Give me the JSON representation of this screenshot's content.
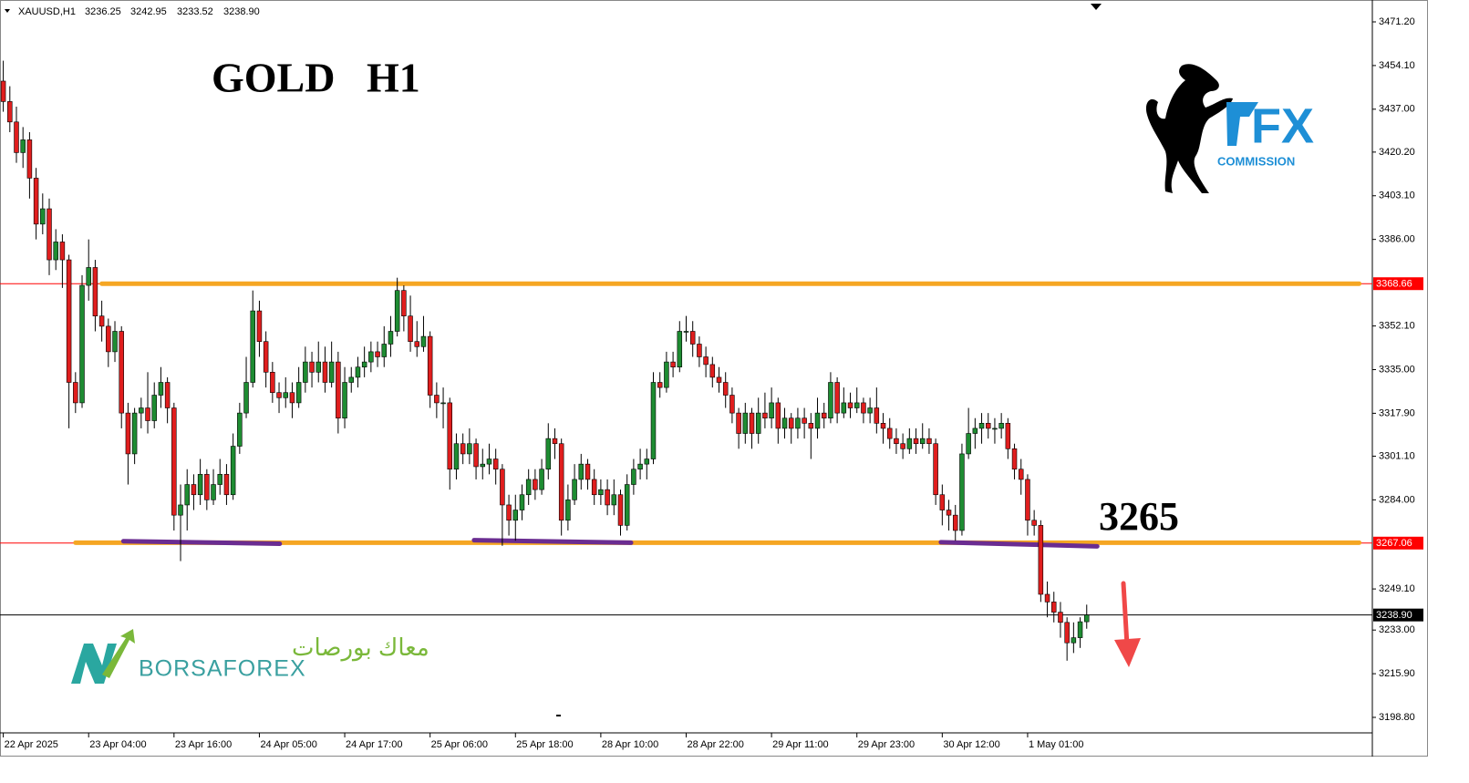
{
  "chart_data": {
    "type": "candlestick",
    "symbol": "XAUUSD,H1",
    "header_labels": [
      "3236.25",
      "3242.95",
      "3233.52",
      "3238.90"
    ],
    "title": "GOLD   H1",
    "annotation": "3265",
    "up_color": "#1e8c32",
    "down_color": "#e01e1e",
    "xlim": [
      -0.5,
      208.5
    ],
    "ylim": [
      3192.73,
      3479.77
    ],
    "xticks": [
      {
        "value": 0,
        "label": "22 Apr 2025"
      },
      {
        "value": 13,
        "label": "23 Apr 04:00"
      },
      {
        "value": 26,
        "label": "23 Apr 16:00"
      },
      {
        "value": 39,
        "label": "24 Apr 05:00"
      },
      {
        "value": 52,
        "label": "24 Apr 17:00"
      },
      {
        "value": 65,
        "label": "25 Apr 06:00"
      },
      {
        "value": 78,
        "label": "25 Apr 18:00"
      },
      {
        "value": 91,
        "label": "28 Apr 10:00"
      },
      {
        "value": 104,
        "label": "28 Apr 22:00"
      },
      {
        "value": 117,
        "label": "29 Apr 11:00"
      },
      {
        "value": 130,
        "label": "29 Apr 23:00"
      },
      {
        "value": 143,
        "label": "30 Apr 12:00"
      },
      {
        "value": 156,
        "label": "1 May 01:00"
      }
    ],
    "yticks": [
      {
        "value": 3471.2,
        "label": "3471.20"
      },
      {
        "value": 3454.1,
        "label": "3454.10"
      },
      {
        "value": 3437,
        "label": "3437.00"
      },
      {
        "value": 3420.2,
        "label": "3420.20"
      },
      {
        "value": 3403.1,
        "label": "3403.10"
      },
      {
        "value": 3386,
        "label": "3386.00"
      },
      {
        "value": 3352.1,
        "label": "3352.10"
      },
      {
        "value": 3335,
        "label": "3335.00"
      },
      {
        "value": 3317.9,
        "label": "3317.90"
      },
      {
        "value": 3301.1,
        "label": "3301.10"
      },
      {
        "value": 3284,
        "label": "3284.00"
      },
      {
        "value": 3249.1,
        "label": "3249.10"
      },
      {
        "value": 3233,
        "label": "3233.00"
      },
      {
        "value": 3215.9,
        "label": "3215.90"
      },
      {
        "value": 3198.8,
        "label": "3198.80"
      }
    ],
    "levels": [
      {
        "value": 3368.66,
        "label": "3368.66",
        "color": "#ff0000"
      },
      {
        "value": 3267.06,
        "label": "3267.06",
        "color": "#ff0000"
      },
      {
        "value": 3238.9,
        "label": "3238.90",
        "color": "#000000"
      }
    ],
    "lines": [
      {
        "color": "#f5a623",
        "x": [
          15,
          206.5
        ],
        "y": [
          3368.66,
          3368.66
        ]
      },
      {
        "color": "#f5a623",
        "x": [
          11,
          206.5
        ],
        "y": [
          3267.2,
          3267.2
        ]
      },
      {
        "color": "#6a2c91",
        "x": [
          18.3,
          42.1
        ],
        "y": [
          3267.8,
          3266.8
        ]
      },
      {
        "color": "#6a2c91",
        "x": [
          71.7,
          95.6
        ],
        "y": [
          3268.2,
          3267.2
        ]
      },
      {
        "color": "#6a2c91",
        "x": [
          142.8,
          166.6
        ],
        "y": [
          3267.4,
          3265.8
        ]
      }
    ],
    "ohlc": [
      [
        3448,
        3456,
        3436,
        3440
      ],
      [
        3440,
        3446,
        3428,
        3432
      ],
      [
        3432,
        3438,
        3416,
        3420
      ],
      [
        3420,
        3430,
        3414,
        3425
      ],
      [
        3425,
        3428,
        3402,
        3410
      ],
      [
        3410,
        3414,
        3386,
        3392
      ],
      [
        3392,
        3404,
        3388,
        3398
      ],
      [
        3398,
        3402,
        3372,
        3378
      ],
      [
        3378,
        3390,
        3374,
        3385
      ],
      [
        3385,
        3388,
        3367,
        3378
      ],
      [
        3378,
        3380,
        3312,
        3330
      ],
      [
        3330,
        3334,
        3318,
        3322
      ],
      [
        3322,
        3372,
        3320,
        3368
      ],
      [
        3368,
        3386,
        3362,
        3375
      ],
      [
        3375,
        3378,
        3350,
        3356
      ],
      [
        3356,
        3362,
        3346,
        3352
      ],
      [
        3352,
        3355,
        3336,
        3342
      ],
      [
        3342,
        3354,
        3338,
        3350
      ],
      [
        3350,
        3352,
        3312,
        3318
      ],
      [
        3318,
        3322,
        3290,
        3302
      ],
      [
        3302,
        3320,
        3298,
        3318
      ],
      [
        3318,
        3324,
        3312,
        3320
      ],
      [
        3320,
        3334,
        3310,
        3315
      ],
      [
        3315,
        3330,
        3312,
        3325
      ],
      [
        3325,
        3336,
        3320,
        3330
      ],
      [
        3330,
        3332,
        3314,
        3320
      ],
      [
        3320,
        3322,
        3272,
        3278
      ],
      [
        3278,
        3290,
        3260,
        3282
      ],
      [
        3282,
        3296,
        3272,
        3290
      ],
      [
        3290,
        3294,
        3280,
        3286
      ],
      [
        3286,
        3300,
        3282,
        3294
      ],
      [
        3294,
        3296,
        3280,
        3284
      ],
      [
        3284,
        3296,
        3282,
        3290
      ],
      [
        3290,
        3300,
        3286,
        3294
      ],
      [
        3294,
        3298,
        3282,
        3286
      ],
      [
        3286,
        3310,
        3284,
        3305
      ],
      [
        3305,
        3322,
        3302,
        3318
      ],
      [
        3318,
        3340,
        3316,
        3330
      ],
      [
        3330,
        3366,
        3328,
        3358
      ],
      [
        3358,
        3362,
        3340,
        3346
      ],
      [
        3346,
        3350,
        3328,
        3334
      ],
      [
        3334,
        3338,
        3322,
        3326
      ],
      [
        3326,
        3330,
        3318,
        3324
      ],
      [
        3324,
        3332,
        3320,
        3326
      ],
      [
        3326,
        3330,
        3316,
        3322
      ],
      [
        3322,
        3336,
        3320,
        3330
      ],
      [
        3330,
        3344,
        3326,
        3338
      ],
      [
        3338,
        3342,
        3328,
        3334
      ],
      [
        3334,
        3346,
        3330,
        3338
      ],
      [
        3338,
        3344,
        3326,
        3330
      ],
      [
        3330,
        3346,
        3328,
        3338
      ],
      [
        3338,
        3342,
        3310,
        3316
      ],
      [
        3316,
        3336,
        3312,
        3330
      ],
      [
        3330,
        3336,
        3326,
        3332
      ],
      [
        3332,
        3340,
        3328,
        3336
      ],
      [
        3336,
        3344,
        3332,
        3338
      ],
      [
        3338,
        3346,
        3334,
        3342
      ],
      [
        3342,
        3346,
        3336,
        3340
      ],
      [
        3340,
        3352,
        3336,
        3345
      ],
      [
        3345,
        3356,
        3340,
        3350
      ],
      [
        3350,
        3371,
        3348,
        3366
      ],
      [
        3366,
        3368,
        3350,
        3356
      ],
      [
        3356,
        3364,
        3342,
        3346
      ],
      [
        3346,
        3354,
        3340,
        3344
      ],
      [
        3344,
        3356,
        3342,
        3348
      ],
      [
        3348,
        3350,
        3320,
        3325
      ],
      [
        3325,
        3330,
        3316,
        3322
      ],
      [
        3322,
        3328,
        3312,
        3322
      ],
      [
        3322,
        3324,
        3288,
        3296
      ],
      [
        3296,
        3310,
        3292,
        3306
      ],
      [
        3306,
        3310,
        3298,
        3302
      ],
      [
        3302,
        3312,
        3298,
        3306
      ],
      [
        3306,
        3308,
        3292,
        3297
      ],
      [
        3297,
        3304,
        3292,
        3298
      ],
      [
        3298,
        3306,
        3294,
        3300
      ],
      [
        3300,
        3304,
        3290,
        3296
      ],
      [
        3296,
        3298,
        3266,
        3282
      ],
      [
        3282,
        3286,
        3270,
        3276
      ],
      [
        3276,
        3286,
        3268,
        3280
      ],
      [
        3280,
        3290,
        3276,
        3286
      ],
      [
        3286,
        3296,
        3282,
        3292
      ],
      [
        3292,
        3296,
        3284,
        3288
      ],
      [
        3288,
        3300,
        3286,
        3296
      ],
      [
        3296,
        3314,
        3292,
        3308
      ],
      [
        3308,
        3312,
        3300,
        3306
      ],
      [
        3306,
        3308,
        3270,
        3276
      ],
      [
        3276,
        3290,
        3272,
        3284
      ],
      [
        3284,
        3298,
        3282,
        3292
      ],
      [
        3292,
        3302,
        3288,
        3298
      ],
      [
        3298,
        3300,
        3288,
        3292
      ],
      [
        3292,
        3296,
        3282,
        3286
      ],
      [
        3286,
        3292,
        3282,
        3288
      ],
      [
        3288,
        3292,
        3278,
        3282
      ],
      [
        3282,
        3292,
        3278,
        3286
      ],
      [
        3286,
        3288,
        3270,
        3274
      ],
      [
        3274,
        3294,
        3272,
        3290
      ],
      [
        3290,
        3300,
        3286,
        3296
      ],
      [
        3296,
        3304,
        3292,
        3298
      ],
      [
        3298,
        3304,
        3292,
        3300
      ],
      [
        3300,
        3334,
        3298,
        3330
      ],
      [
        3330,
        3334,
        3324,
        3328
      ],
      [
        3328,
        3342,
        3326,
        3338
      ],
      [
        3338,
        3342,
        3332,
        3336
      ],
      [
        3336,
        3354,
        3334,
        3350
      ],
      [
        3350,
        3356,
        3346,
        3350
      ],
      [
        3350,
        3354,
        3340,
        3345
      ],
      [
        3345,
        3348,
        3336,
        3340
      ],
      [
        3340,
        3344,
        3332,
        3337
      ],
      [
        3337,
        3340,
        3328,
        3332
      ],
      [
        3332,
        3336,
        3326,
        3330
      ],
      [
        3330,
        3334,
        3320,
        3325
      ],
      [
        3325,
        3328,
        3314,
        3318
      ],
      [
        3318,
        3320,
        3304,
        3310
      ],
      [
        3310,
        3322,
        3306,
        3318
      ],
      [
        3318,
        3320,
        3304,
        3310
      ],
      [
        3310,
        3324,
        3306,
        3318
      ],
      [
        3318,
        3326,
        3312,
        3316
      ],
      [
        3316,
        3328,
        3312,
        3322
      ],
      [
        3322,
        3324,
        3306,
        3312
      ],
      [
        3312,
        3320,
        3308,
        3316
      ],
      [
        3316,
        3318,
        3306,
        3312
      ],
      [
        3312,
        3320,
        3308,
        3316
      ],
      [
        3316,
        3320,
        3308,
        3314
      ],
      [
        3314,
        3318,
        3300,
        3312
      ],
      [
        3312,
        3324,
        3308,
        3318
      ],
      [
        3318,
        3322,
        3312,
        3316
      ],
      [
        3316,
        3334,
        3314,
        3330
      ],
      [
        3330,
        3332,
        3314,
        3318
      ],
      [
        3318,
        3328,
        3316,
        3322
      ],
      [
        3322,
        3326,
        3316,
        3320
      ],
      [
        3320,
        3328,
        3318,
        3322
      ],
      [
        3322,
        3324,
        3314,
        3318
      ],
      [
        3318,
        3324,
        3314,
        3320
      ],
      [
        3320,
        3328,
        3310,
        3314
      ],
      [
        3314,
        3318,
        3306,
        3312
      ],
      [
        3312,
        3316,
        3304,
        3308
      ],
      [
        3308,
        3312,
        3302,
        3306
      ],
      [
        3306,
        3310,
        3300,
        3304
      ],
      [
        3304,
        3312,
        3302,
        3308
      ],
      [
        3308,
        3312,
        3302,
        3306
      ],
      [
        3306,
        3314,
        3304,
        3308
      ],
      [
        3308,
        3312,
        3302,
        3306
      ],
      [
        3306,
        3308,
        3282,
        3286
      ],
      [
        3286,
        3290,
        3274,
        3280
      ],
      [
        3280,
        3284,
        3272,
        3278
      ],
      [
        3278,
        3282,
        3268,
        3272
      ],
      [
        3272,
        3306,
        3270,
        3302
      ],
      [
        3302,
        3320,
        3300,
        3310
      ],
      [
        3310,
        3316,
        3304,
        3312
      ],
      [
        3312,
        3318,
        3306,
        3314
      ],
      [
        3314,
        3318,
        3308,
        3312
      ],
      [
        3312,
        3316,
        3306,
        3312
      ],
      [
        3312,
        3318,
        3308,
        3314
      ],
      [
        3314,
        3316,
        3300,
        3304
      ],
      [
        3304,
        3306,
        3292,
        3296
      ],
      [
        3296,
        3300,
        3286,
        3292
      ],
      [
        3292,
        3294,
        3270,
        3276
      ],
      [
        3276,
        3280,
        3270,
        3274
      ],
      [
        3274,
        3276,
        3244,
        3247
      ],
      [
        3247,
        3252,
        3238,
        3244
      ],
      [
        3244,
        3248,
        3236,
        3240
      ],
      [
        3240,
        3244,
        3230,
        3236
      ],
      [
        3236,
        3238,
        3221,
        3228
      ],
      [
        3228,
        3236,
        3224,
        3230
      ],
      [
        3230,
        3238,
        3226,
        3236.25
      ],
      [
        3236.25,
        3242.95,
        3233.52,
        3238.9
      ]
    ]
  },
  "logos": {
    "fx": "FX",
    "fx_sub": "COMMISSION",
    "borsa": "BORSAFOREX",
    "borsa_ar": "معاك بورصات"
  }
}
